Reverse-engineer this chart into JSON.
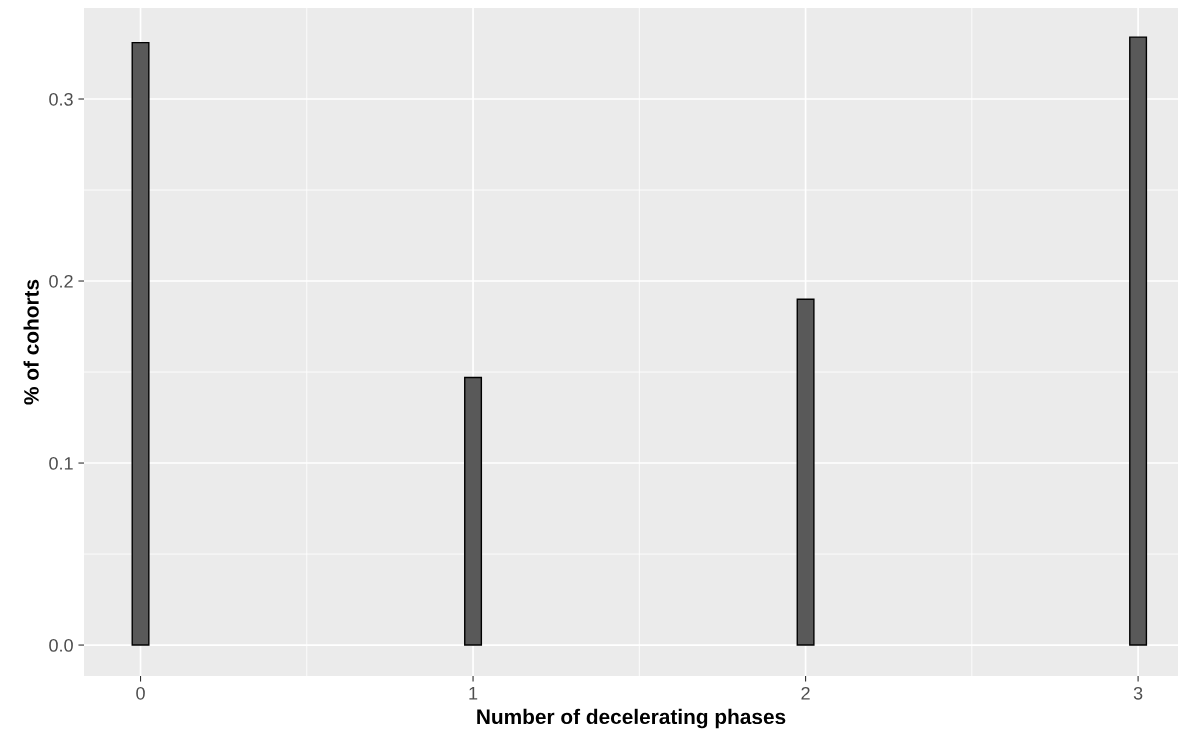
{
  "chart_data": {
    "type": "bar",
    "xlabel": "Number of decelerating phases",
    "ylabel": "% of cohorts",
    "x": [
      0,
      1,
      2,
      3
    ],
    "values": [
      0.331,
      0.147,
      0.19,
      0.334
    ],
    "color": "#595959",
    "xlim": [
      -0.17,
      3.12
    ],
    "ylim": [
      -0.017,
      0.35
    ],
    "xticks": [
      0,
      1,
      2,
      3
    ],
    "yticks": [
      {
        "value": 0,
        "label": "0.0"
      },
      {
        "value": 0.1,
        "label": "0.1"
      },
      {
        "value": 0.2,
        "label": "0.2"
      },
      {
        "value": 0.3,
        "label": "0.3"
      }
    ],
    "grid": true
  }
}
